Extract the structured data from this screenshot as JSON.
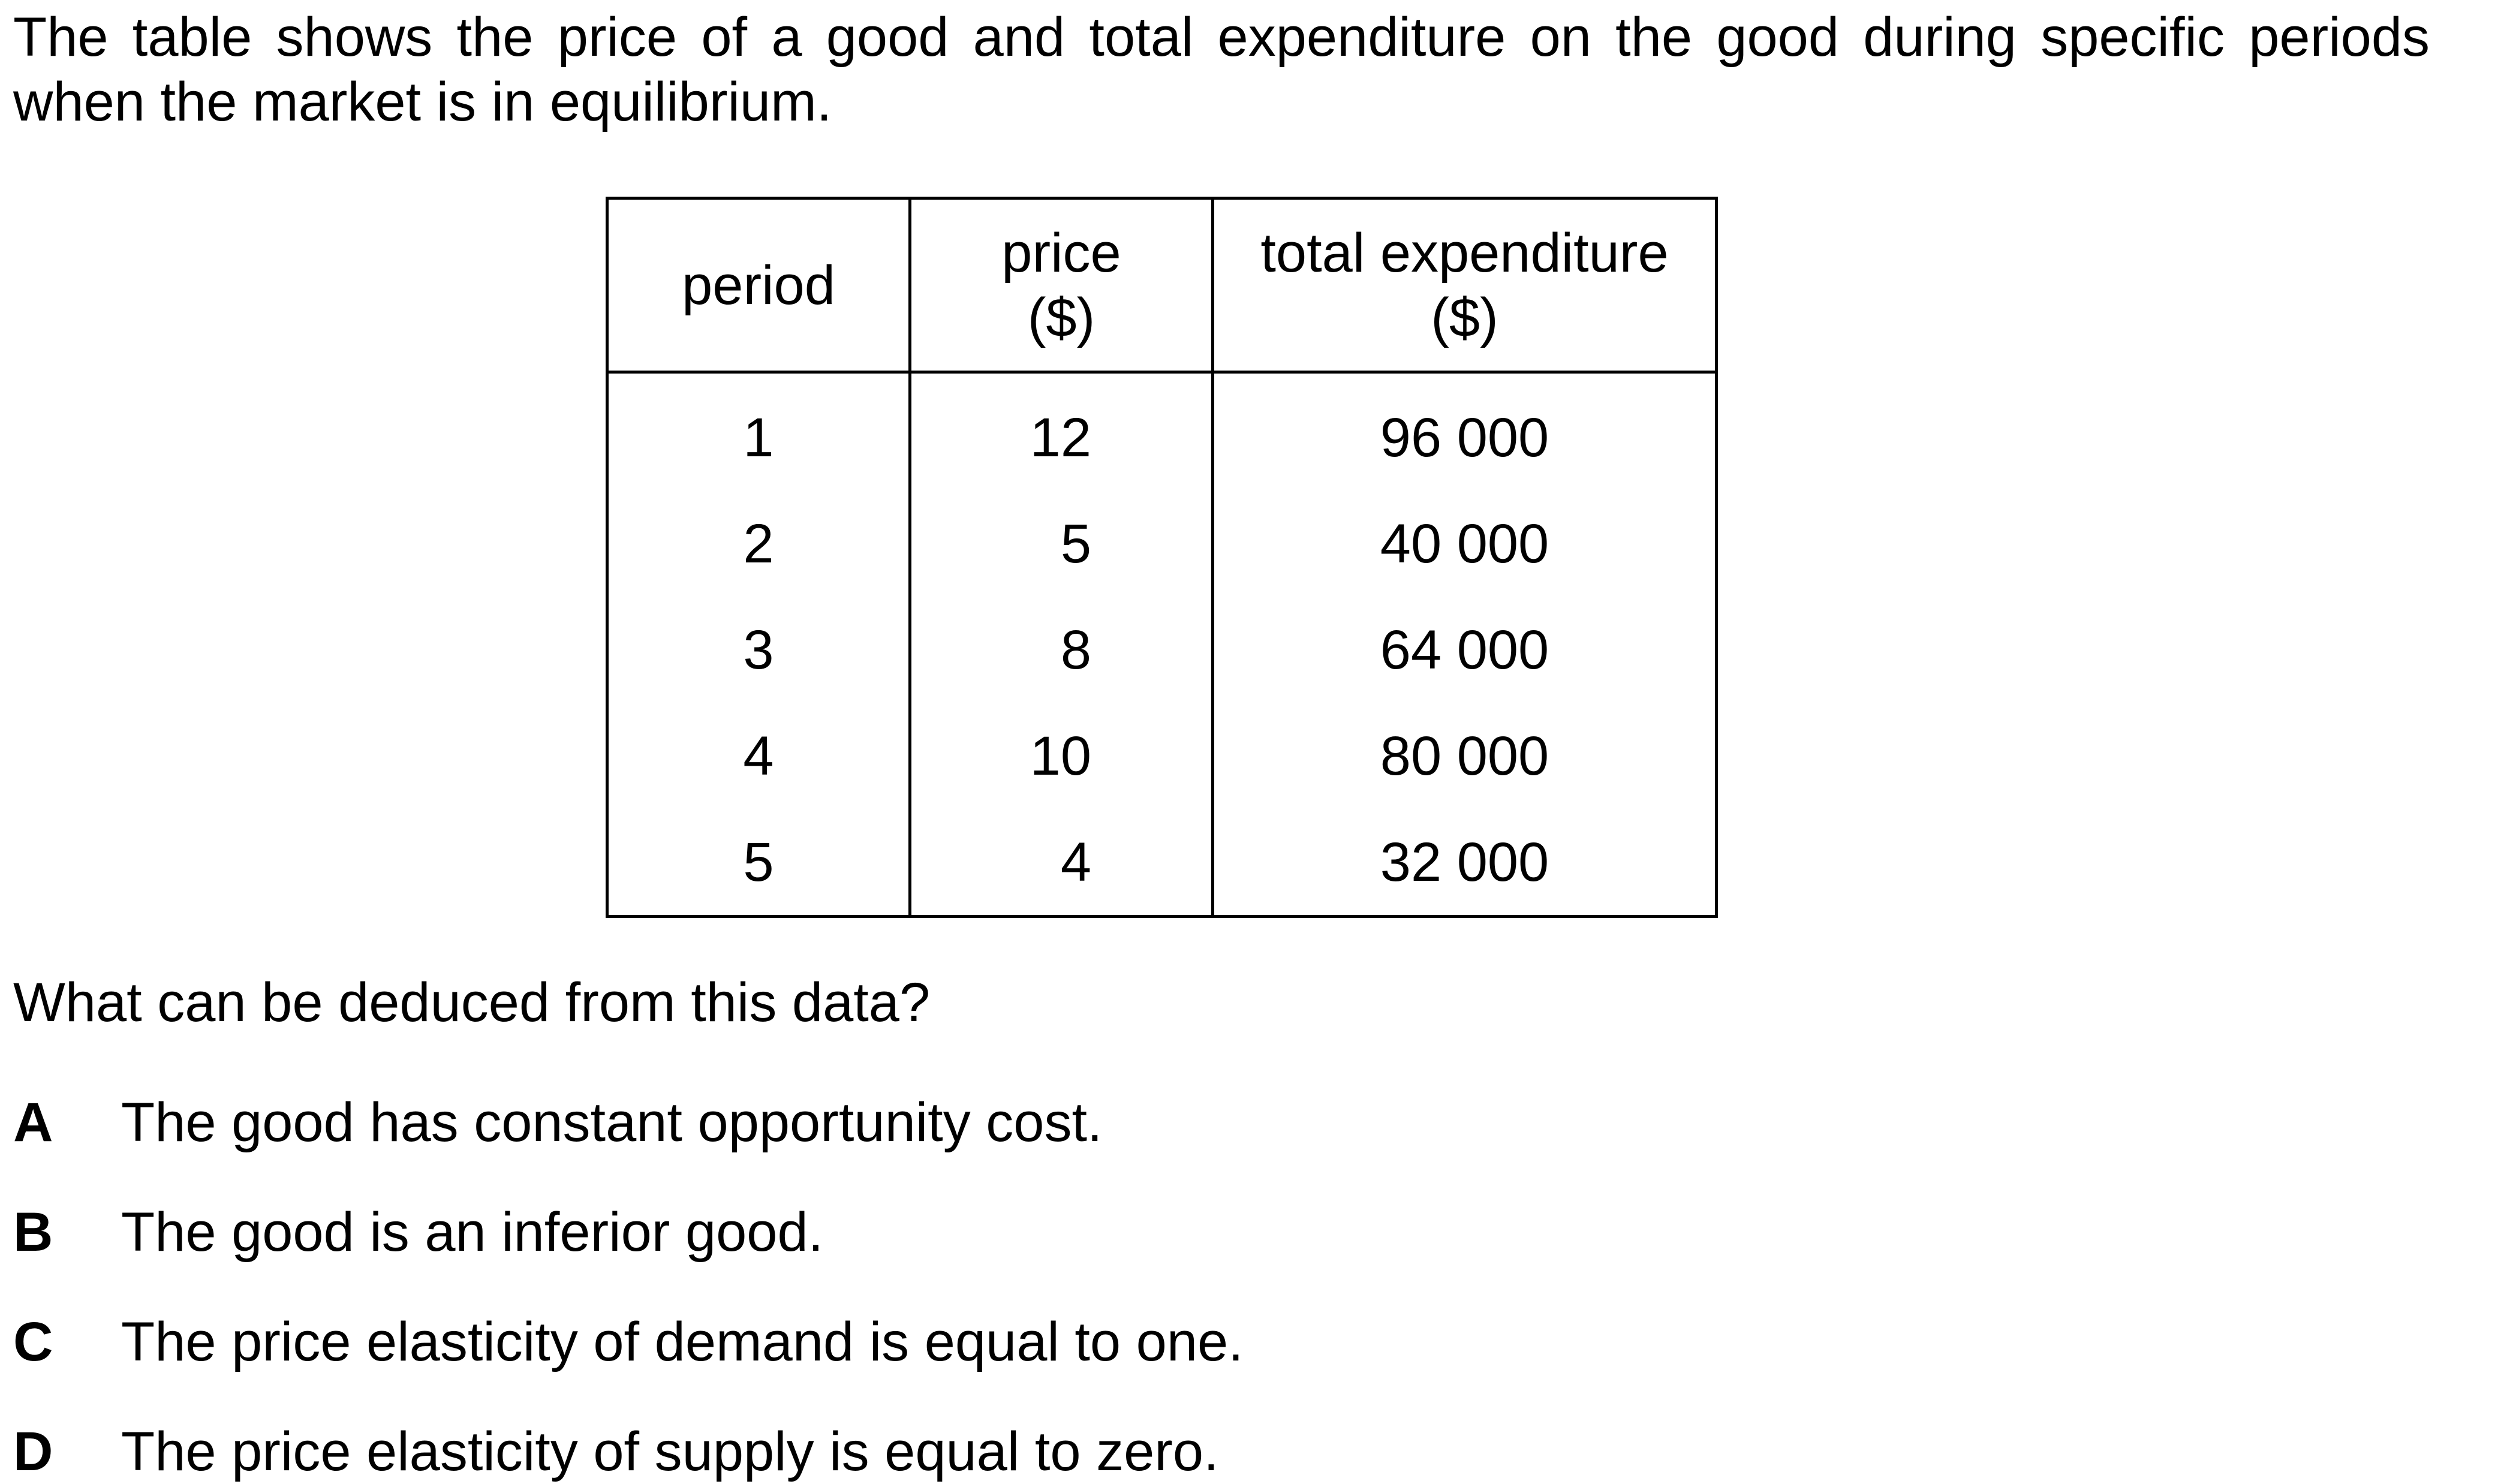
{
  "intro_text": "The table shows the price of a good and total expenditure on the good during specific periods when the market is in equilibrium.",
  "table": {
    "headers": {
      "period": "period",
      "price_line1": "price",
      "price_line2": "($)",
      "expenditure_line1": "total expenditure",
      "expenditure_line2": "($)"
    },
    "rows": [
      {
        "period": "1",
        "price": "12",
        "expenditure": "96 000"
      },
      {
        "period": "2",
        "price": "5",
        "expenditure": "40 000"
      },
      {
        "period": "3",
        "price": "8",
        "expenditure": "64 000"
      },
      {
        "period": "4",
        "price": "10",
        "expenditure": "80 000"
      },
      {
        "period": "5",
        "price": "4",
        "expenditure": "32 000"
      }
    ]
  },
  "question": "What can be deduced from this data?",
  "options": [
    {
      "letter": "A",
      "text": "The good has constant opportunity cost."
    },
    {
      "letter": "B",
      "text": "The good is an inferior good."
    },
    {
      "letter": "C",
      "text": "The price elasticity of demand is equal to one."
    },
    {
      "letter": "D",
      "text": "The price elasticity of supply is equal to zero."
    }
  ]
}
